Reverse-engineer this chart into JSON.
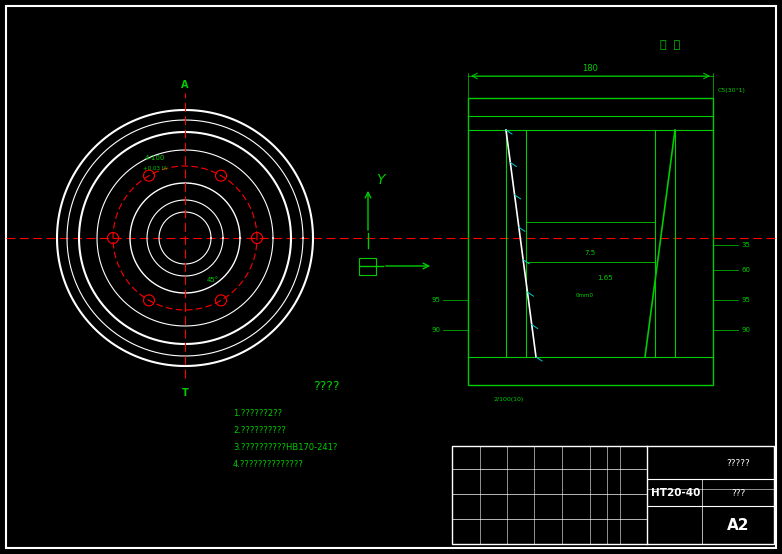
{
  "bg_color": "#000000",
  "green": "#00cc00",
  "white": "#ffffff",
  "red": "#ff0000",
  "cyan": "#00cccc",
  "title_text": "????",
  "notes": [
    "1.??????2??",
    "2.??????????",
    "3.??????????HB170-241?",
    "4.??????????????"
  ],
  "material": "HT20-40",
  "col1": "?????",
  "col2": "???",
  "col3": "A2"
}
